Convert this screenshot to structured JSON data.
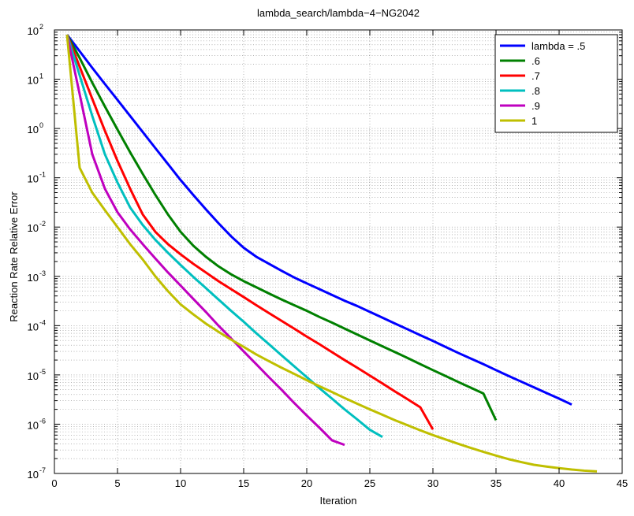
{
  "chart_data": {
    "type": "line",
    "title": "lambda_search/lambda−4−NG2042",
    "xlabel": "Iteration",
    "ylabel": "Reaction Rate Relative Error",
    "xlim": [
      0,
      45
    ],
    "ylim": [
      1e-07,
      100
    ],
    "y_scale": "log",
    "grid": "on (major and minor, dotted)",
    "legend_position": "top-right",
    "x_ticks": [
      0,
      5,
      10,
      15,
      20,
      25,
      30,
      35,
      40,
      45
    ],
    "x_tick_labels": [
      "0",
      "5",
      "10",
      "15",
      "20",
      "25",
      "30",
      "35",
      "40",
      "45"
    ],
    "y_ticks": [
      1e-07,
      1e-06,
      1e-05,
      0.0001,
      0.001,
      0.01,
      0.1,
      1,
      10,
      100
    ],
    "y_tick_labels": [
      {
        "base": "10",
        "exp": "-7"
      },
      {
        "base": "10",
        "exp": "-6"
      },
      {
        "base": "10",
        "exp": "-5"
      },
      {
        "base": "10",
        "exp": "-4"
      },
      {
        "base": "10",
        "exp": "-3"
      },
      {
        "base": "10",
        "exp": "-2"
      },
      {
        "base": "10",
        "exp": "-1"
      },
      {
        "base": "10",
        "exp": "0"
      },
      {
        "base": "10",
        "exp": "1"
      },
      {
        "base": "10",
        "exp": "2"
      }
    ],
    "series": [
      {
        "name": "lambda = .5",
        "color": "#0000ff",
        "x": [
          1,
          2,
          3,
          4,
          5,
          6,
          7,
          8,
          9,
          10,
          11,
          12,
          13,
          14,
          15,
          16,
          17,
          18,
          19,
          20,
          21,
          22,
          23,
          24,
          25,
          26,
          27,
          28,
          29,
          30,
          31,
          32,
          33,
          34,
          35,
          36,
          37,
          38,
          39,
          40,
          41
        ],
        "y": [
          80,
          37,
          17,
          8,
          3.8,
          1.8,
          0.85,
          0.4,
          0.19,
          0.09,
          0.045,
          0.023,
          0.012,
          0.0065,
          0.0038,
          0.0025,
          0.0018,
          0.0013,
          0.00095,
          0.00072,
          0.00055,
          0.00042,
          0.00032,
          0.00025,
          0.00019,
          0.000145,
          0.00011,
          8.4e-05,
          6.4e-05,
          4.9e-05,
          3.7e-05,
          2.8e-05,
          2.15e-05,
          1.65e-05,
          1.25e-05,
          9.5e-06,
          7.3e-06,
          5.6e-06,
          4.3e-06,
          3.3e-06,
          2.5e-06
        ]
      },
      {
        "name": ".6",
        "color": "#008000",
        "x": [
          1,
          2,
          3,
          4,
          5,
          6,
          7,
          8,
          9,
          10,
          11,
          12,
          13,
          14,
          15,
          16,
          17,
          18,
          19,
          20,
          21,
          22,
          23,
          24,
          25,
          26,
          27,
          28,
          29,
          30,
          31,
          32,
          33,
          34,
          35
        ],
        "y": [
          80,
          27,
          8.5,
          2.8,
          0.95,
          0.33,
          0.12,
          0.045,
          0.018,
          0.008,
          0.0042,
          0.0025,
          0.0016,
          0.0011,
          0.0008,
          0.0006,
          0.00045,
          0.00034,
          0.00026,
          0.0002,
          0.00015,
          0.000115,
          8.7e-05,
          6.6e-05,
          5e-05,
          3.8e-05,
          2.9e-05,
          2.2e-05,
          1.65e-05,
          1.25e-05,
          9.5e-06,
          7.2e-06,
          5.5e-06,
          4.2e-06,
          1.2e-06
        ]
      },
      {
        "name": ".7",
        "color": "#ff0000",
        "x": [
          1,
          2,
          3,
          4,
          5,
          6,
          7,
          8,
          9,
          10,
          11,
          12,
          13,
          14,
          15,
          16,
          17,
          18,
          19,
          20,
          21,
          22,
          23,
          24,
          25,
          26,
          27,
          28,
          29,
          30
        ],
        "y": [
          80,
          18,
          4,
          0.9,
          0.22,
          0.06,
          0.018,
          0.008,
          0.0045,
          0.0028,
          0.0018,
          0.0012,
          0.0008,
          0.00055,
          0.00038,
          0.00026,
          0.00018,
          0.000125,
          8.7e-05,
          6e-05,
          4.2e-05,
          2.9e-05,
          2e-05,
          1.4e-05,
          9.7e-06,
          6.7e-06,
          4.6e-06,
          3.2e-06,
          2.2e-06,
          7.8e-07
        ]
      },
      {
        "name": ".8",
        "color": "#00bfbf",
        "x": [
          1,
          2,
          3,
          4,
          5,
          6,
          7,
          8,
          9,
          10,
          11,
          12,
          13,
          14,
          15,
          16,
          17,
          18,
          19,
          20,
          21,
          22,
          23,
          24,
          25,
          26
        ],
        "y": [
          80,
          12,
          1.8,
          0.3,
          0.08,
          0.025,
          0.011,
          0.0055,
          0.003,
          0.0017,
          0.00098,
          0.00058,
          0.00034,
          0.0002,
          0.00012,
          7e-05,
          4.2e-05,
          2.5e-05,
          1.5e-05,
          9e-06,
          5.4e-06,
          3.3e-06,
          2e-06,
          1.25e-06,
          7.7e-07,
          5.5e-07
        ]
      },
      {
        "name": ".9",
        "color": "#bf00bf",
        "x": [
          1,
          2,
          3,
          4,
          5,
          6,
          7,
          8,
          9,
          10,
          11,
          12,
          13,
          14,
          15,
          16,
          17,
          18,
          19,
          20,
          21,
          22,
          23
        ],
        "y": [
          80,
          5,
          0.3,
          0.06,
          0.02,
          0.009,
          0.0045,
          0.0023,
          0.0012,
          0.00065,
          0.00035,
          0.00019,
          0.0001,
          5.5e-05,
          3e-05,
          1.65e-05,
          9e-06,
          5e-06,
          2.7e-06,
          1.5e-06,
          8.5e-07,
          4.7e-07,
          3.8e-07
        ]
      },
      {
        "name": "1",
        "color": "#bfbf00",
        "x": [
          1,
          2,
          3,
          4,
          5,
          6,
          7,
          8,
          9,
          10,
          11,
          12,
          13,
          14,
          15,
          16,
          17,
          18,
          19,
          20,
          21,
          22,
          23,
          24,
          25,
          26,
          27,
          28,
          29,
          30,
          31,
          32,
          33,
          34,
          35,
          36,
          37,
          38,
          39,
          40,
          41,
          42,
          43
        ],
        "y": [
          80,
          0.16,
          0.05,
          0.022,
          0.01,
          0.0045,
          0.0022,
          0.001,
          0.0005,
          0.00027,
          0.00017,
          0.00011,
          7.5e-05,
          5.2e-05,
          3.7e-05,
          2.6e-05,
          1.9e-05,
          1.4e-05,
          1.05e-05,
          7.8e-06,
          5.9e-06,
          4.5e-06,
          3.4e-06,
          2.6e-06,
          2e-06,
          1.55e-06,
          1.2e-06,
          9.5e-07,
          7.5e-07,
          6e-07,
          4.9e-07,
          4e-07,
          3.3e-07,
          2.75e-07,
          2.3e-07,
          1.95e-07,
          1.7e-07,
          1.5e-07,
          1.38e-07,
          1.28e-07,
          1.2e-07,
          1.14e-07,
          1.1e-07
        ]
      }
    ]
  }
}
